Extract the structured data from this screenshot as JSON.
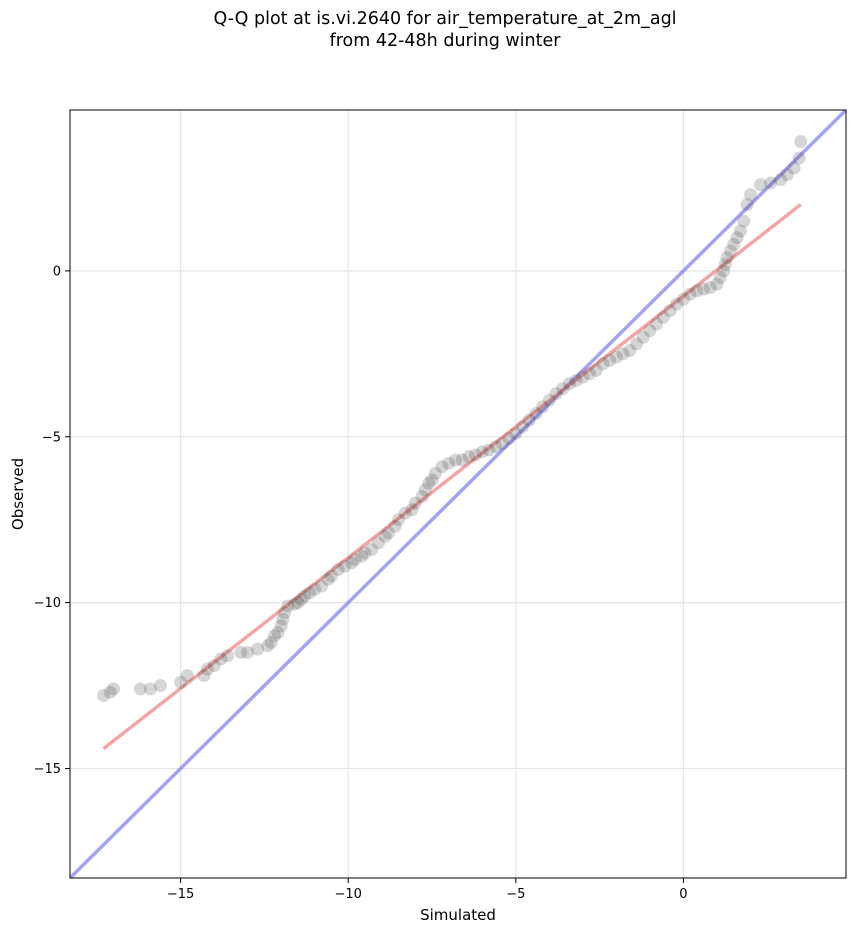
{
  "chart_data": {
    "type": "scatter",
    "title_line1": "Q-Q plot at is.vi.2640 for air_temperature_at_2m_agl",
    "title_line2": "from 42-48h during winter",
    "xlabel": "Simulated",
    "ylabel": "Observed",
    "xlim": [
      -18.3,
      4.85
    ],
    "ylim": [
      -18.3,
      4.85
    ],
    "xticks": [
      -15,
      -10,
      -5,
      0
    ],
    "yticks": [
      -15,
      -10,
      -5,
      0
    ],
    "xtick_labels": [
      "−15",
      "−10",
      "−5",
      "0"
    ],
    "ytick_labels": [
      "−15",
      "−10",
      "−5",
      "0"
    ],
    "grid": true,
    "colors": {
      "points": "#333333",
      "fit_line": "#f08080",
      "identity_line": "#6666ee"
    },
    "fit_line": {
      "x": [
        -17.3,
        3.5
      ],
      "y": [
        -14.4,
        2.0
      ]
    },
    "identity_line": {
      "x": [
        -18.3,
        4.85
      ],
      "y": [
        -18.3,
        4.85
      ]
    },
    "points": [
      [
        -17.3,
        -12.8
      ],
      [
        -17.1,
        -12.7
      ],
      [
        -17.0,
        -12.6
      ],
      [
        -16.2,
        -12.6
      ],
      [
        -15.9,
        -12.6
      ],
      [
        -15.6,
        -12.5
      ],
      [
        -15.0,
        -12.4
      ],
      [
        -14.8,
        -12.2
      ],
      [
        -14.3,
        -12.2
      ],
      [
        -14.2,
        -12.0
      ],
      [
        -14.0,
        -11.9
      ],
      [
        -13.8,
        -11.7
      ],
      [
        -13.6,
        -11.6
      ],
      [
        -13.2,
        -11.5
      ],
      [
        -13.0,
        -11.5
      ],
      [
        -12.7,
        -11.4
      ],
      [
        -12.4,
        -11.3
      ],
      [
        -12.3,
        -11.2
      ],
      [
        -12.2,
        -11.0
      ],
      [
        -12.1,
        -10.9
      ],
      [
        -12.0,
        -10.7
      ],
      [
        -11.95,
        -10.5
      ],
      [
        -11.9,
        -10.3
      ],
      [
        -11.8,
        -10.1
      ],
      [
        -11.6,
        -10.05
      ],
      [
        -11.5,
        -10.0
      ],
      [
        -11.4,
        -9.9
      ],
      [
        -11.3,
        -9.8
      ],
      [
        -11.15,
        -9.7
      ],
      [
        -11.0,
        -9.6
      ],
      [
        -10.8,
        -9.5
      ],
      [
        -10.6,
        -9.3
      ],
      [
        -10.5,
        -9.2
      ],
      [
        -10.3,
        -9.0
      ],
      [
        -10.1,
        -8.9
      ],
      [
        -9.9,
        -8.8
      ],
      [
        -9.8,
        -8.7
      ],
      [
        -9.6,
        -8.6
      ],
      [
        -9.5,
        -8.5
      ],
      [
        -9.3,
        -8.4
      ],
      [
        -9.1,
        -8.2
      ],
      [
        -8.9,
        -8.0
      ],
      [
        -8.8,
        -7.9
      ],
      [
        -8.6,
        -7.7
      ],
      [
        -8.5,
        -7.5
      ],
      [
        -8.3,
        -7.3
      ],
      [
        -8.1,
        -7.2
      ],
      [
        -8.0,
        -7.0
      ],
      [
        -7.8,
        -6.8
      ],
      [
        -7.7,
        -6.6
      ],
      [
        -7.6,
        -6.4
      ],
      [
        -7.5,
        -6.3
      ],
      [
        -7.4,
        -6.1
      ],
      [
        -7.2,
        -5.9
      ],
      [
        -7.0,
        -5.8
      ],
      [
        -6.8,
        -5.7
      ],
      [
        -6.6,
        -5.7
      ],
      [
        -6.4,
        -5.6
      ],
      [
        -6.2,
        -5.55
      ],
      [
        -6.0,
        -5.45
      ],
      [
        -5.8,
        -5.4
      ],
      [
        -5.6,
        -5.3
      ],
      [
        -5.4,
        -5.2
      ],
      [
        -5.2,
        -5.05
      ],
      [
        -5.0,
        -4.9
      ],
      [
        -4.8,
        -4.7
      ],
      [
        -4.6,
        -4.5
      ],
      [
        -4.4,
        -4.3
      ],
      [
        -4.2,
        -4.1
      ],
      [
        -4.0,
        -3.9
      ],
      [
        -3.8,
        -3.7
      ],
      [
        -3.6,
        -3.55
      ],
      [
        -3.4,
        -3.4
      ],
      [
        -3.2,
        -3.3
      ],
      [
        -3.0,
        -3.2
      ],
      [
        -2.8,
        -3.1
      ],
      [
        -2.6,
        -3.0
      ],
      [
        -2.4,
        -2.8
      ],
      [
        -2.2,
        -2.7
      ],
      [
        -2.0,
        -2.6
      ],
      [
        -1.8,
        -2.5
      ],
      [
        -1.6,
        -2.4
      ],
      [
        -1.4,
        -2.2
      ],
      [
        -1.2,
        -2.0
      ],
      [
        -1.0,
        -1.8
      ],
      [
        -0.8,
        -1.6
      ],
      [
        -0.6,
        -1.4
      ],
      [
        -0.4,
        -1.2
      ],
      [
        -0.2,
        -1.0
      ],
      [
        0.0,
        -0.85
      ],
      [
        0.2,
        -0.7
      ],
      [
        0.4,
        -0.6
      ],
      [
        0.6,
        -0.55
      ],
      [
        0.8,
        -0.5
      ],
      [
        1.0,
        -0.4
      ],
      [
        1.1,
        -0.2
      ],
      [
        1.2,
        0.0
      ],
      [
        1.25,
        0.2
      ],
      [
        1.3,
        0.4
      ],
      [
        1.4,
        0.6
      ],
      [
        1.5,
        0.8
      ],
      [
        1.6,
        1.0
      ],
      [
        1.7,
        1.2
      ],
      [
        1.8,
        1.5
      ],
      [
        1.9,
        2.0
      ],
      [
        2.0,
        2.3
      ],
      [
        2.3,
        2.6
      ],
      [
        2.6,
        2.65
      ],
      [
        2.9,
        2.75
      ],
      [
        3.1,
        2.9
      ],
      [
        3.3,
        3.1
      ],
      [
        3.45,
        3.4
      ],
      [
        3.5,
        3.9
      ]
    ]
  }
}
